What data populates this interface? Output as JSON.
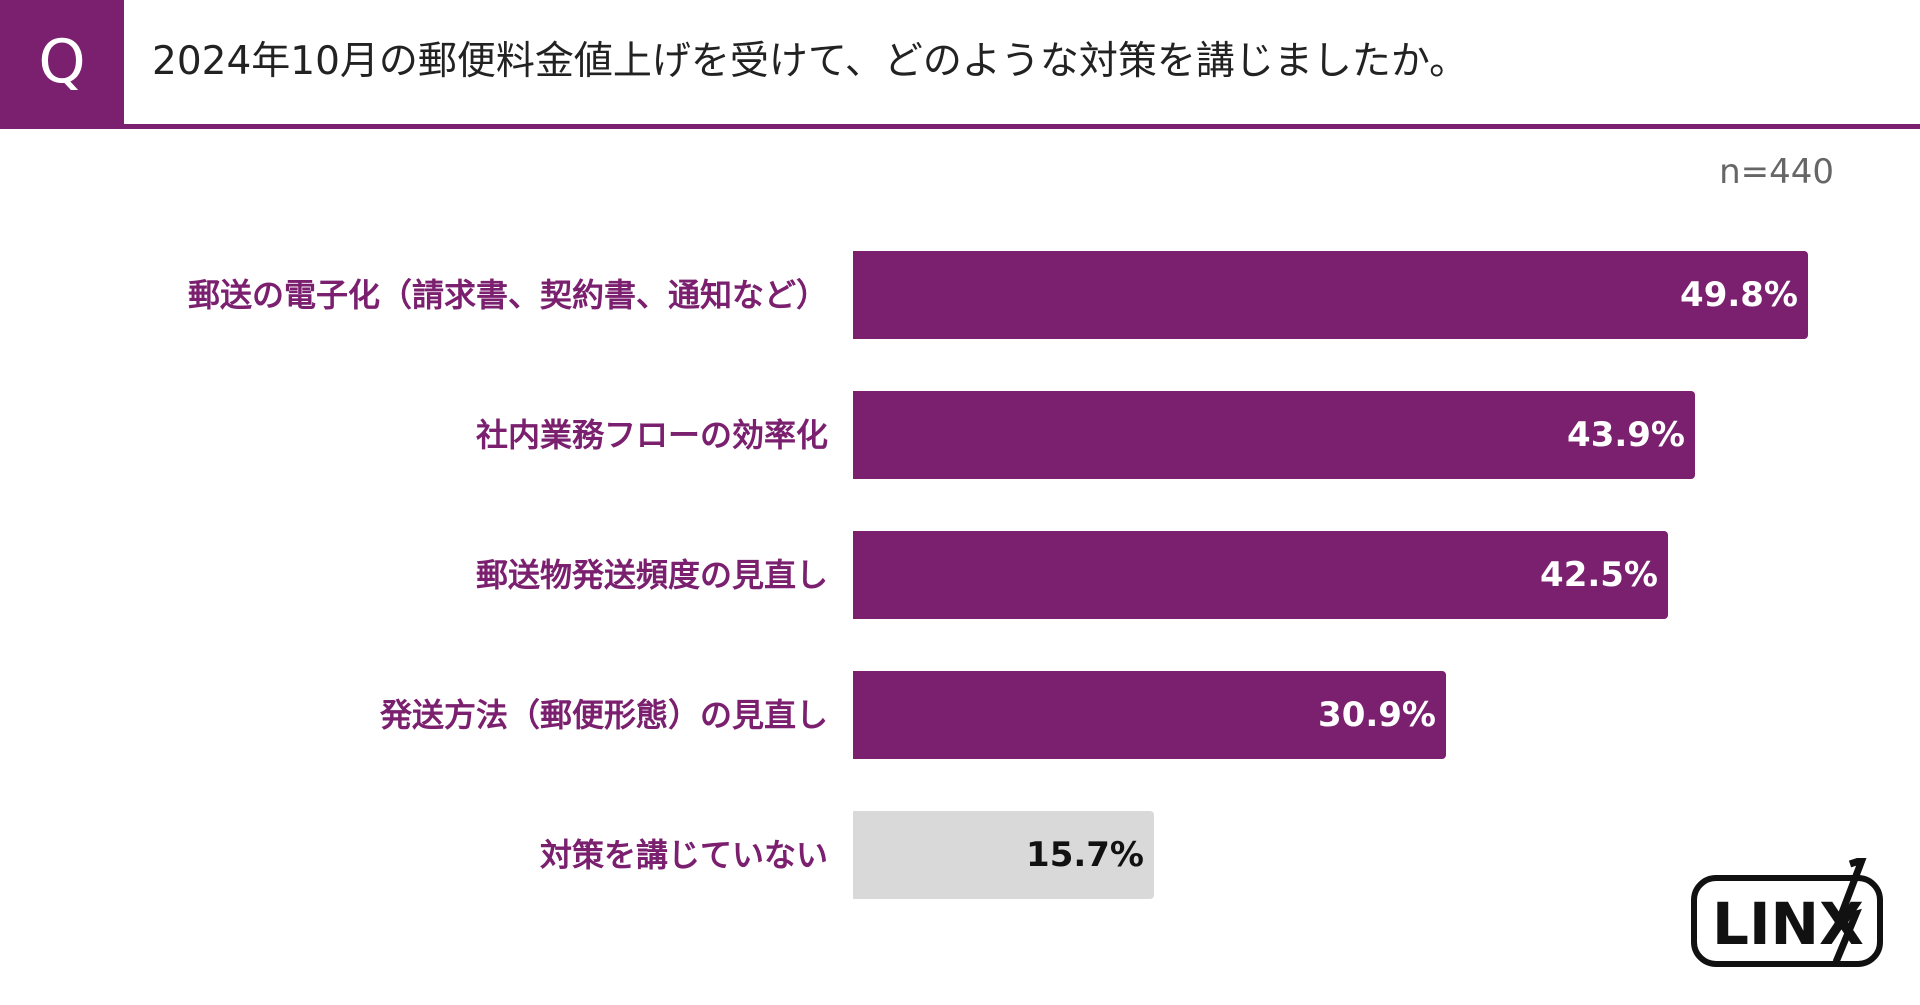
{
  "header": {
    "q_mark": "Q",
    "question": "2024年10月の郵便料金値上げを受けて、どのような対策を講じましたか。"
  },
  "sample_size": "n=440",
  "logo_text": "LINX",
  "colors": {
    "accent": "#7b1f6f",
    "none_bar": "#d9d9d9",
    "value_on_accent": "#ffffff",
    "value_on_none": "#111111"
  },
  "chart_data": {
    "type": "bar",
    "orientation": "horizontal",
    "title": "2024年10月の郵便料金値上げを受けて、どのような対策を講じましたか。",
    "categories": [
      "郵送の電子化（請求書、契約書、通知など）",
      "社内業務フローの効率化",
      "郵送物発送頻度の見直し",
      "発送方法（郵便形態）の見直し",
      "対策を講じていない"
    ],
    "values": [
      49.8,
      43.9,
      42.5,
      30.9,
      15.7
    ],
    "value_labels": [
      "49.8%",
      "43.9%",
      "42.5%",
      "30.9%",
      "15.7%"
    ],
    "unit": "%",
    "xlim": [
      0,
      52
    ],
    "grid": false,
    "legend": "none"
  }
}
